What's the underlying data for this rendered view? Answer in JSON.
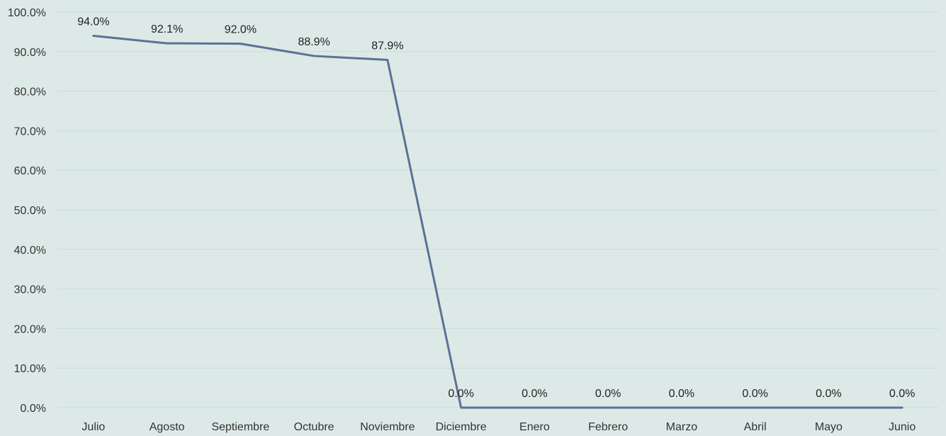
{
  "chart_data": {
    "type": "line",
    "title": "",
    "xlabel": "",
    "ylabel": "",
    "categories": [
      "Julio",
      "Agosto",
      "Septiembre",
      "Octubre",
      "Noviembre",
      "Diciembre",
      "Enero",
      "Febrero",
      "Marzo",
      "Abril",
      "Mayo",
      "Junio"
    ],
    "series": [
      {
        "values": [
          94.0,
          92.1,
          92.0,
          88.9,
          87.9,
          0.0,
          0.0,
          0.0,
          0.0,
          0.0,
          0.0,
          0.0
        ],
        "data_labels": [
          "94.0%",
          "92.1%",
          "92.0%",
          "88.9%",
          "87.9%",
          "0.0%",
          "0.0%",
          "0.0%",
          "0.0%",
          "0.0%",
          "0.0%",
          "0.0%"
        ],
        "color": "#5b7196"
      }
    ],
    "ylim": [
      0,
      100
    ],
    "y_ticks": [
      0,
      10,
      20,
      30,
      40,
      50,
      60,
      70,
      80,
      90,
      100
    ],
    "y_tick_labels": [
      "0.0%",
      "10.0%",
      "20.0%",
      "30.0%",
      "40.0%",
      "50.0%",
      "60.0%",
      "70.0%",
      "80.0%",
      "90.0%",
      "100.0%"
    ],
    "grid": true,
    "legend": "none",
    "colors": {
      "background": "#dde9e7",
      "grid": "#c9dbd8"
    }
  }
}
